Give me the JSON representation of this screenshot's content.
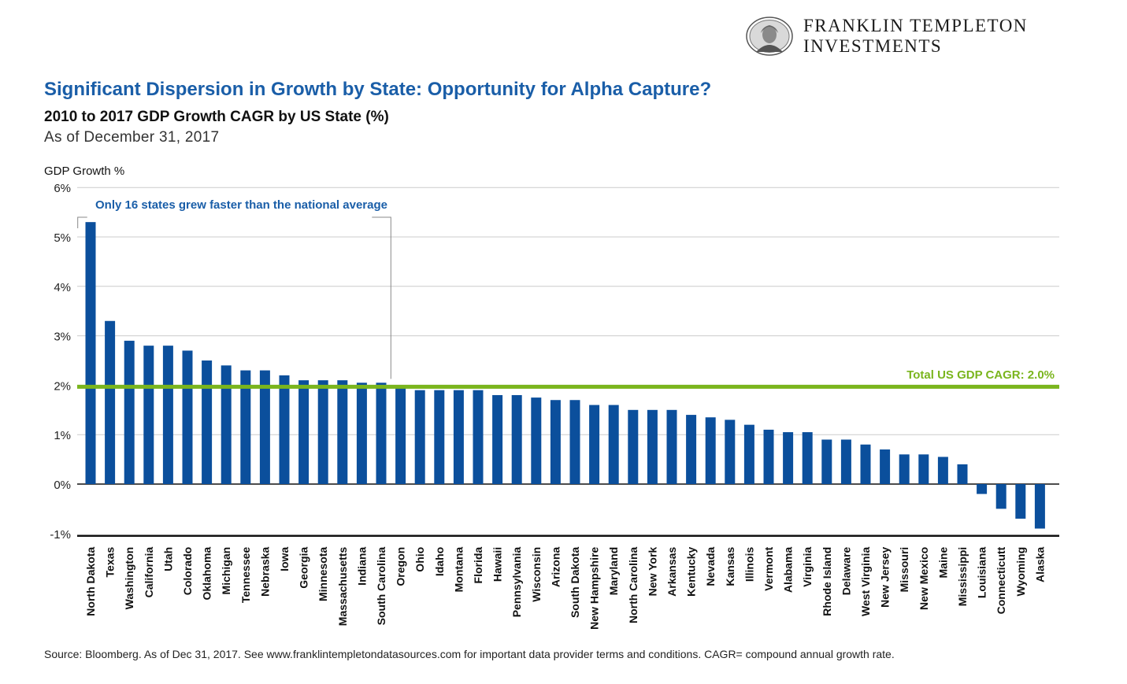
{
  "brand": {
    "line1": "FRANKLIN TEMPLETON",
    "line2": "INVESTMENTS"
  },
  "header": {
    "title": "Significant Dispersion in Growth by State: Opportunity for Alpha Capture?",
    "subtitle": "2010 to 2017 GDP Growth CAGR by US State (%)",
    "as_of": "As of December 31, 2017"
  },
  "footer": {
    "source": "Source: Bloomberg. As of Dec 31, 2017. See www.franklintempletondatasources.com for important data provider terms and conditions. CAGR= compound annual growth rate."
  },
  "colors": {
    "bar": "#0b4f9c",
    "reference_line": "#7ab51d",
    "title": "#1a5ea8",
    "gridline": "#cccccc"
  },
  "chart_data": {
    "type": "bar",
    "ylabel": "GDP Growth %",
    "ylim": [
      -1,
      6
    ],
    "yticks": [
      {
        "value": 6,
        "label": "6%"
      },
      {
        "value": 5,
        "label": "5%"
      },
      {
        "value": 4,
        "label": "4%"
      },
      {
        "value": 3,
        "label": "3%"
      },
      {
        "value": 2,
        "label": "2%"
      },
      {
        "value": 1,
        "label": "1%"
      },
      {
        "value": 0,
        "label": "0%"
      },
      {
        "value": -1,
        "label": "-1%"
      }
    ],
    "grid": true,
    "categories": [
      "North Dakota",
      "Texas",
      "Washington",
      "California",
      "Utah",
      "Colorado",
      "Oklahoma",
      "Michigan",
      "Tennessee",
      "Nebraska",
      "Iowa",
      "Georgia",
      "Minnesota",
      "Massachusetts",
      "Indiana",
      "South Carolina",
      "Oregon",
      "Ohio",
      "Idaho",
      "Montana",
      "Florida",
      "Hawaii",
      "Pennsylvania",
      "Wisconsin",
      "Arizona",
      "South Dakota",
      "New Hampshire",
      "Maryland",
      "North Carolina",
      "New York",
      "Arkansas",
      "Kentucky",
      "Nevada",
      "Kansas",
      "Illinois",
      "Vermont",
      "Alabama",
      "Virginia",
      "Rhode Island",
      "Delaware",
      "West Virginia",
      "New Jersey",
      "Missouri",
      "New Mexico",
      "Maine",
      "Mississippi",
      "Louisiana",
      "Connecticutt",
      "Wyoming",
      "Alaska"
    ],
    "values": [
      5.3,
      3.3,
      2.9,
      2.8,
      2.8,
      2.7,
      2.5,
      2.4,
      2.3,
      2.3,
      2.2,
      2.1,
      2.1,
      2.1,
      2.05,
      2.05,
      1.95,
      1.9,
      1.9,
      1.9,
      1.9,
      1.8,
      1.8,
      1.75,
      1.7,
      1.7,
      1.6,
      1.6,
      1.5,
      1.5,
      1.5,
      1.4,
      1.35,
      1.3,
      1.2,
      1.1,
      1.05,
      1.05,
      0.9,
      0.9,
      0.8,
      0.7,
      0.6,
      0.6,
      0.55,
      0.4,
      -0.2,
      -0.5,
      -0.7,
      -0.9
    ],
    "reference_line": {
      "value": 2.0,
      "label": "Total US GDP CAGR: 2.0%"
    },
    "annotation": {
      "text": "Only 16 states grew faster than the national average",
      "count": 16
    }
  }
}
